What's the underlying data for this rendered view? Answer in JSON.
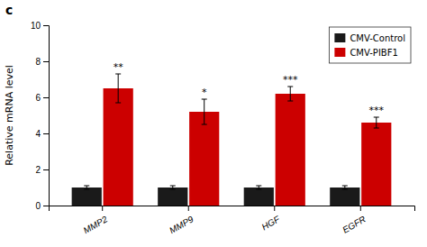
{
  "chart_data": {
    "type": "bar",
    "annotations": [
      {
        "text": "c"
      }
    ],
    "ylabel": "Relative mRNA level",
    "categories": [
      "MMP2",
      "MMP9",
      "HGF",
      "EGFR"
    ],
    "series": [
      {
        "name": "CMV-Control",
        "color": "#1a1a1a",
        "values": [
          1.0,
          1.0,
          1.0,
          1.0
        ],
        "errors": [
          0.1,
          0.1,
          0.1,
          0.1
        ]
      },
      {
        "name": "CMV-PIBF1",
        "color": "#cc0000",
        "values": [
          6.5,
          5.2,
          6.2,
          4.6
        ],
        "errors": [
          0.8,
          0.7,
          0.4,
          0.3
        ],
        "significance": [
          "**",
          "*",
          "***",
          "***"
        ]
      }
    ],
    "ylim": [
      0,
      10
    ],
    "yticks": [
      0,
      2,
      4,
      6,
      8,
      10
    ],
    "grid": false,
    "legend": "upper right"
  }
}
